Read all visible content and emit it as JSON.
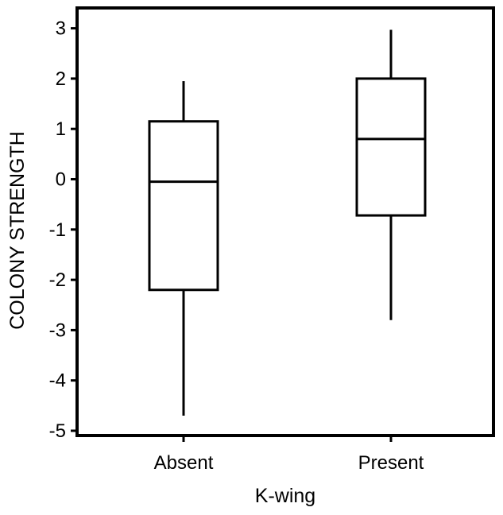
{
  "chart_data": {
    "type": "box",
    "xlabel": "K-wing",
    "ylabel": "COLONY STRENGTH",
    "ylim": [
      -5,
      3.4
    ],
    "yticks": [
      "-5",
      "-4",
      "-3",
      "-2",
      "-1",
      "0",
      "1",
      "2",
      "3"
    ],
    "categories": [
      "Absent",
      "Present"
    ],
    "series": [
      {
        "category": "Absent",
        "min": -4.7,
        "q1": -2.2,
        "median": -0.05,
        "q3": 1.15,
        "max": 1.95
      },
      {
        "category": "Present",
        "min": -2.8,
        "q1": -0.72,
        "median": 0.8,
        "q3": 2.0,
        "max": 2.97
      }
    ],
    "grid": false,
    "colors": {
      "stroke": "#000000",
      "background": "#ffffff"
    }
  }
}
